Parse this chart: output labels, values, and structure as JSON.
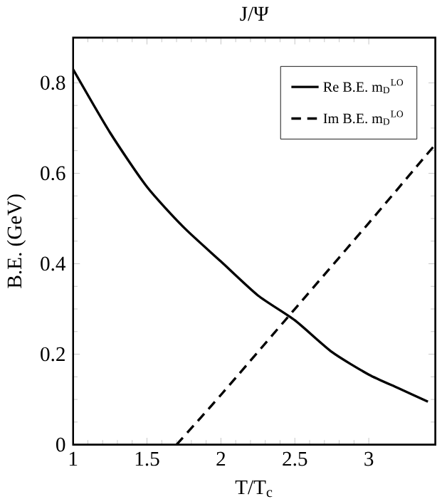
{
  "chart_data": {
    "type": "line",
    "title": "J/Ψ",
    "xlabel": "T/T$_{c}$",
    "ylabel": "B.E. (GeV)",
    "series": [
      {
        "name": "Re B.E. m$_{D}$$^{LO}$",
        "color": "#000000",
        "line_style": "solid",
        "x": [
          1,
          1.25,
          1.5,
          1.75,
          2,
          2.25,
          2.5,
          2.75,
          3,
          3.2,
          3.4
        ],
        "values": [
          0.83,
          0.69,
          0.57,
          0.48,
          0.405,
          0.33,
          0.275,
          0.205,
          0.155,
          0.125,
          0.095
        ]
      },
      {
        "name": "Im B.E. m$_{D}$$^{LO}$",
        "color": "#000000",
        "line_style": "dashed",
        "x": [
          1.7,
          2,
          2.5,
          3,
          3.44
        ],
        "values": [
          0,
          0.11,
          0.3,
          0.49,
          0.66
        ]
      }
    ],
    "xlim": [
      1,
      3.45
    ],
    "ylim": [
      0,
      0.9
    ],
    "xticks": [
      1,
      1.5,
      2,
      2.5,
      3
    ],
    "yticks": [
      0,
      0.2,
      0.4,
      0.6,
      0.8
    ],
    "legend": "top right",
    "grid": false,
    "marker": "none"
  }
}
